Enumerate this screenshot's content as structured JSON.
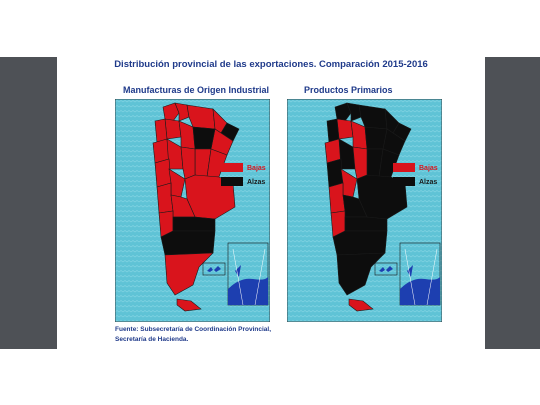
{
  "title": "Distribución provincial de las exportaciones. Comparación 2015-2016",
  "maps": [
    {
      "subtitle": "Manufacturas de Origen Industrial"
    },
    {
      "subtitle": "Productos Primarios"
    }
  ],
  "legend": {
    "bajas": {
      "label": "Bajas",
      "color": "#d9141c"
    },
    "alzas": {
      "label": "Alzas",
      "color": "#0d0d0d"
    }
  },
  "colors": {
    "sea": "#5fc3d6",
    "antarctica": "#1d3fb0",
    "frame": "#2b2b2b"
  },
  "source": {
    "line1": "Fuente: Subsecretaría de Coordinación Provincial,",
    "line2": "Secretaría de Hacienda."
  }
}
